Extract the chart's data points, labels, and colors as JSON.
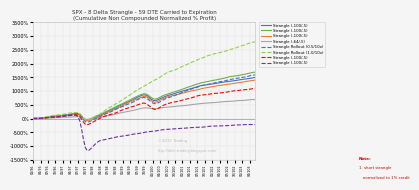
{
  "title_line1": "SPX - 8 Delta Strangle - 59 DTE Carried to Expiration",
  "title_line2": "(Cumulative Non Compounded Normalized % Profit)",
  "background_color": "#f5f5f5",
  "plot_bg_color": "#f5f5f5",
  "watermark1": "©2015 Trading",
  "watermark2": "http://dble-trading.blogspot.com/",
  "note_title": "Note:",
  "note1": "1. short strangle",
  "note2": "   normalized to 1% credit",
  "ylim": [
    -1500,
    3500
  ],
  "ytick_vals": [
    -1500,
    -1000,
    -500,
    0,
    500,
    1000,
    1500,
    2000,
    2500,
    3000,
    3500
  ],
  "ytick_labels": [
    "-1500%",
    "-1000%",
    "-500%",
    "0%",
    "500%",
    "1000%",
    "1500%",
    "2000%",
    "2500%",
    "3000%",
    "3500%"
  ],
  "colors": [
    "#4472c4",
    "#70ad47",
    "#ed7d31",
    "#a5a5a5",
    "#4472c4",
    "#92d050",
    "#ff0000",
    "#7030a0"
  ],
  "styles": [
    "solid",
    "solid",
    "solid",
    "solid",
    "dashed",
    "dashed",
    "dashed",
    "dashed"
  ],
  "lws": [
    0.8,
    0.8,
    0.8,
    0.8,
    0.8,
    0.8,
    0.8,
    0.8
  ],
  "legend_labels": [
    "Strangle (-100/-5)",
    "Strangle (-100/-5)",
    "Strangle (-100/-5)",
    "Strangle (-64/-5)",
    "Strangle Rollout (0.5/10x)",
    "Strangle Rollout (1.0/10x)",
    "Strangle (-100/-5)",
    "Strangle (-100/-5)"
  ]
}
